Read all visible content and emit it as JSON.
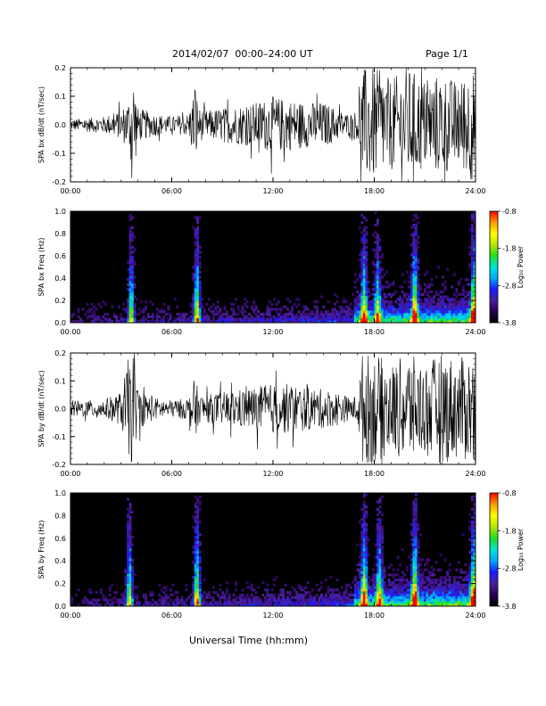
{
  "header": {
    "title": "2014/02/07  00:00–24:00 UT",
    "page": "Page 1/1"
  },
  "footer": {
    "xlabel": "Universal Time (hh:mm)"
  },
  "colorbar": {
    "label": "Log₁₀ Power",
    "ticks": [
      "-0.8",
      "-1.8",
      "-2.8",
      "-3.8"
    ],
    "range": [
      -3.8,
      -0.8
    ],
    "palette": [
      "#000000",
      "#2a0055",
      "#4b1f9c",
      "#1a1aff",
      "#00aaff",
      "#00e5d0",
      "#22dd22",
      "#b8e600",
      "#ffff00",
      "#ff9900",
      "#ff0000"
    ]
  },
  "chart_data": [
    {
      "type": "line",
      "name": "bx-waveform",
      "ylabel": "SPA bx dB/dt (nT/sec)",
      "xticks": [
        "00:00",
        "06:00",
        "12:00",
        "18:00",
        "24:00"
      ],
      "yticks": [
        "0.2",
        "0.1",
        "0.0",
        "-0.1",
        "-0.2"
      ],
      "xlim": [
        0,
        24
      ],
      "ylim": [
        -0.2,
        0.2
      ],
      "envelope": {
        "x": [
          0,
          1,
          2,
          3,
          3.5,
          3.7,
          4,
          5,
          6,
          7,
          7.4,
          7.6,
          8,
          9,
          10,
          11,
          12,
          13,
          14,
          15,
          16,
          16.5,
          17,
          17.3,
          17.5,
          18,
          19,
          20,
          21,
          22,
          23,
          23.8,
          24
        ],
        "amp": [
          0.02,
          0.025,
          0.03,
          0.05,
          0.1,
          0.2,
          0.06,
          0.04,
          0.03,
          0.04,
          0.15,
          0.06,
          0.05,
          0.06,
          0.07,
          0.08,
          0.1,
          0.09,
          0.08,
          0.08,
          0.05,
          0.04,
          0.05,
          0.2,
          0.2,
          0.2,
          0.16,
          0.2,
          0.16,
          0.18,
          0.15,
          0.2,
          0.2
        ]
      }
    },
    {
      "type": "heatmap",
      "name": "bx-spectrogram",
      "ylabel": "SPA bx Freq (Hz)",
      "xticks": [
        "00:00",
        "06:00",
        "12:00",
        "18:00",
        "24:00"
      ],
      "yticks": [
        "1.0",
        "0.8",
        "0.6",
        "0.4",
        "0.2",
        "0.0"
      ],
      "xlim": [
        0,
        24
      ],
      "ylim": [
        0,
        1
      ],
      "zlim": [
        -3.8,
        -0.8
      ],
      "bursts": [
        {
          "t": 3.6,
          "strength": 0.7
        },
        {
          "t": 7.5,
          "strength": 0.85
        },
        {
          "t": 17.4,
          "strength": 0.8
        },
        {
          "t": 18.2,
          "strength": 0.7
        },
        {
          "t": 20.4,
          "strength": 0.9
        },
        {
          "t": 23.9,
          "strength": 0.95
        }
      ]
    },
    {
      "type": "line",
      "name": "by-waveform",
      "ylabel": "SPA by dB/dt (nT/sec)",
      "xticks": [
        "00:00",
        "06:00",
        "12:00",
        "18:00",
        "24:00"
      ],
      "yticks": [
        "0.2",
        "0.1",
        "0.0",
        "-0.1",
        "-0.2"
      ],
      "xlim": [
        0,
        24
      ],
      "ylim": [
        -0.2,
        0.2
      ],
      "envelope": {
        "x": [
          0,
          1,
          2,
          3,
          3.5,
          3.7,
          4,
          5,
          6,
          7,
          7.4,
          7.6,
          8,
          9,
          10,
          11,
          12,
          13,
          14,
          15,
          16,
          16.5,
          17,
          17.3,
          17.5,
          18,
          19,
          20,
          21,
          22,
          23,
          23.8,
          24
        ],
        "amp": [
          0.03,
          0.03,
          0.035,
          0.06,
          0.2,
          0.2,
          0.07,
          0.04,
          0.03,
          0.04,
          0.12,
          0.05,
          0.05,
          0.06,
          0.07,
          0.08,
          0.09,
          0.09,
          0.08,
          0.07,
          0.06,
          0.04,
          0.05,
          0.2,
          0.2,
          0.2,
          0.16,
          0.2,
          0.16,
          0.2,
          0.18,
          0.2,
          0.2
        ]
      }
    },
    {
      "type": "heatmap",
      "name": "by-spectrogram",
      "ylabel": "SPA by Freq (Hz)",
      "xticks": [
        "00:00",
        "06:00",
        "12:00",
        "18:00",
        "24:00"
      ],
      "yticks": [
        "1.0",
        "0.8",
        "0.6",
        "0.4",
        "0.2",
        "0.0"
      ],
      "xlim": [
        0,
        24
      ],
      "ylim": [
        0,
        1
      ],
      "zlim": [
        -3.8,
        -0.8
      ],
      "bursts": [
        {
          "t": 3.5,
          "strength": 0.75
        },
        {
          "t": 7.5,
          "strength": 0.85
        },
        {
          "t": 17.4,
          "strength": 0.85
        },
        {
          "t": 18.3,
          "strength": 0.7
        },
        {
          "t": 20.4,
          "strength": 0.9
        },
        {
          "t": 23.9,
          "strength": 0.95
        }
      ]
    }
  ]
}
